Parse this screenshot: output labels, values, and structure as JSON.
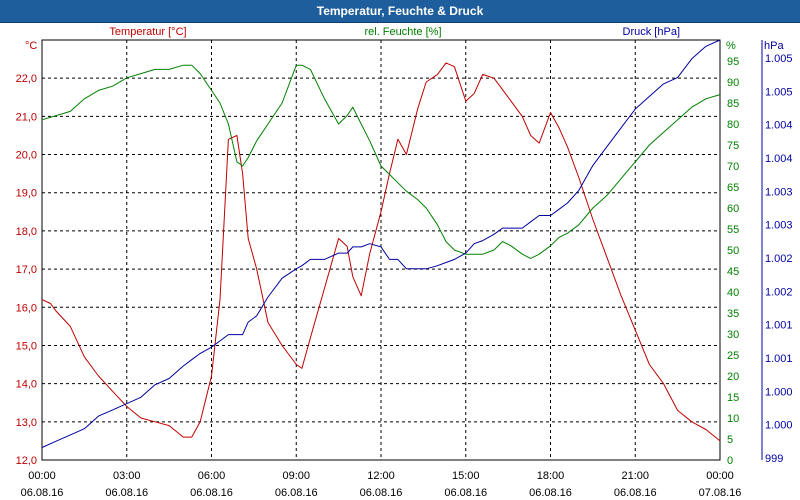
{
  "window": {
    "title": "Temperatur, Feuchte & Druck"
  },
  "colors": {
    "temperature": "#c00000",
    "humidity": "#008000",
    "pressure": "#0000a0",
    "titlebar": "#1f5e9c"
  },
  "chart_data": {
    "type": "line",
    "title": "Temperatur, Feuchte & Druck",
    "grid": true,
    "x_ticks": [
      {
        "time": "00:00",
        "date": "06.08.16"
      },
      {
        "time": "03:00",
        "date": "06.08.16"
      },
      {
        "time": "06:00",
        "date": "06.08.16"
      },
      {
        "time": "09:00",
        "date": "06.08.16"
      },
      {
        "time": "12:00",
        "date": "06.08.16"
      },
      {
        "time": "15:00",
        "date": "06.08.16"
      },
      {
        "time": "18:00",
        "date": "06.08.16"
      },
      {
        "time": "21:00",
        "date": "06.08.16"
      },
      {
        "time": "00:00",
        "date": "07.08.16"
      }
    ],
    "xlim": [
      0,
      24
    ],
    "axes": {
      "temperature": {
        "label": "Temperatur [°C]",
        "unit": "°C",
        "ylim": [
          12.0,
          23.0
        ],
        "ticks": [
          "12,0",
          "13,0",
          "14,0",
          "15,0",
          "16,0",
          "17,0",
          "18,0",
          "19,0",
          "20,0",
          "21,0",
          "22,0"
        ]
      },
      "humidity": {
        "label": "rel. Feuchte [%]",
        "unit": "%",
        "ylim": [
          0,
          100
        ],
        "ticks": [
          "0",
          "5",
          "10",
          "15",
          "20",
          "25",
          "30",
          "35",
          "40",
          "45",
          "50",
          "55",
          "60",
          "65",
          "70",
          "75",
          "80",
          "85",
          "90",
          "95"
        ]
      },
      "pressure": {
        "label": "Druck [hPa]",
        "unit": "hPa",
        "ylim": [
          998.9,
          1005.6
        ],
        "ticks": [
          "999",
          "1.000",
          "1.000",
          "1.001",
          "1.001",
          "1.002",
          "1.002",
          "1.003",
          "1.003",
          "1.004",
          "1.004",
          "1.005",
          "1.005"
        ]
      }
    },
    "series": [
      {
        "name": "Temperatur [°C]",
        "axis": "temperature",
        "x": [
          0,
          0.3,
          0.5,
          1,
          1.5,
          2,
          2.5,
          3,
          3.5,
          4,
          4.5,
          5,
          5.3,
          5.6,
          6,
          6.3,
          6.6,
          6.9,
          7.1,
          7.3,
          7.6,
          8,
          8.5,
          9,
          9.2,
          9.5,
          10,
          10.5,
          10.8,
          11,
          11.3,
          11.6,
          12,
          12.3,
          12.6,
          12.9,
          13.3,
          13.6,
          14,
          14.3,
          14.6,
          15,
          15.3,
          15.6,
          16,
          16.3,
          16.6,
          17,
          17.3,
          17.6,
          18,
          18.3,
          18.6,
          19,
          19.5,
          20,
          20.5,
          21,
          21.5,
          22,
          22.5,
          23,
          23.5,
          24
        ],
        "values": [
          16.2,
          16.1,
          15.9,
          15.5,
          14.7,
          14.2,
          13.8,
          13.4,
          13.1,
          13.0,
          12.9,
          12.6,
          12.6,
          13.0,
          14.2,
          16.2,
          20.4,
          20.5,
          19.5,
          17.8,
          17.0,
          15.6,
          15.0,
          14.5,
          14.4,
          15.2,
          16.5,
          17.8,
          17.6,
          16.8,
          16.3,
          17.4,
          18.5,
          19.5,
          20.4,
          20.0,
          21.2,
          21.9,
          22.1,
          22.4,
          22.3,
          21.4,
          21.6,
          22.1,
          22.0,
          21.7,
          21.4,
          21.0,
          20.5,
          20.3,
          21.1,
          20.7,
          20.2,
          19.4,
          18.3,
          17.3,
          16.3,
          15.4,
          14.5,
          14.0,
          13.3,
          13.0,
          12.8,
          12.5
        ]
      },
      {
        "name": "rel. Feuchte [%]",
        "axis": "humidity",
        "x": [
          0,
          0.5,
          1,
          1.5,
          2,
          2.5,
          3,
          3.5,
          4,
          4.5,
          5,
          5.3,
          5.6,
          6,
          6.3,
          6.6,
          6.9,
          7.1,
          7.3,
          7.6,
          8,
          8.5,
          9,
          9.2,
          9.5,
          10,
          10.5,
          10.8,
          11,
          11.3,
          11.6,
          12,
          12.3,
          12.6,
          12.9,
          13.3,
          13.6,
          14,
          14.3,
          14.6,
          15,
          15.3,
          15.6,
          16,
          16.3,
          16.6,
          17,
          17.3,
          17.6,
          18,
          18.3,
          18.6,
          19,
          19.5,
          20,
          20.5,
          21,
          21.5,
          22,
          22.5,
          23,
          23.5,
          24
        ],
        "values": [
          81,
          82,
          83,
          86,
          88,
          89,
          91,
          92,
          93,
          93,
          94,
          94,
          92,
          88,
          85,
          80,
          71,
          70,
          72,
          76,
          80,
          85,
          94,
          94,
          93,
          86,
          80,
          82,
          84,
          80,
          76,
          70,
          68,
          66,
          64,
          62,
          60,
          56,
          52,
          50,
          49,
          49,
          49,
          50,
          52,
          51,
          49,
          48,
          49,
          51,
          53,
          54,
          56,
          60,
          63,
          67,
          71,
          75,
          78,
          81,
          84,
          86,
          87
        ]
      },
      {
        "name": "Druck [hPa]",
        "axis": "pressure",
        "x": [
          0,
          0.5,
          1,
          1.5,
          2,
          2.5,
          3,
          3.5,
          4,
          4.5,
          5,
          5.3,
          5.6,
          6,
          6.3,
          6.6,
          6.9,
          7.1,
          7.3,
          7.6,
          8,
          8.5,
          9,
          9.2,
          9.5,
          10,
          10.5,
          10.8,
          11,
          11.3,
          11.6,
          12,
          12.3,
          12.6,
          12.9,
          13.3,
          13.6,
          14,
          14.3,
          14.6,
          15,
          15.3,
          15.6,
          16,
          16.3,
          16.6,
          17,
          17.3,
          17.6,
          18,
          18.3,
          18.6,
          19,
          19.5,
          20,
          20.5,
          21,
          21.5,
          22,
          22.5,
          23,
          23.5,
          24
        ],
        "values": [
          999.1,
          999.2,
          999.3,
          999.4,
          999.6,
          999.7,
          999.8,
          999.9,
          1000.1,
          1000.2,
          1000.4,
          1000.5,
          1000.6,
          1000.7,
          1000.8,
          1000.9,
          1000.9,
          1000.9,
          1001.1,
          1001.2,
          1001.5,
          1001.8,
          1001.95,
          1002.0,
          1002.1,
          1002.1,
          1002.2,
          1002.2,
          1002.3,
          1002.3,
          1002.35,
          1002.3,
          1002.1,
          1002.1,
          1001.95,
          1001.95,
          1001.95,
          1002.0,
          1002.05,
          1002.1,
          1002.2,
          1002.35,
          1002.4,
          1002.5,
          1002.6,
          1002.6,
          1002.6,
          1002.7,
          1002.8,
          1002.8,
          1002.9,
          1003.0,
          1003.2,
          1003.6,
          1003.9,
          1004.2,
          1004.5,
          1004.7,
          1004.9,
          1005.0,
          1005.3,
          1005.5,
          1005.6
        ]
      }
    ]
  }
}
